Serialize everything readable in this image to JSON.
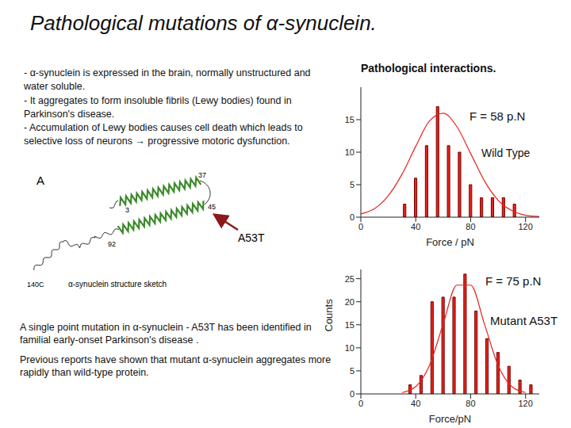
{
  "title": "Pathological mutations of α-synuclein.",
  "bullets": [
    "- α-synuclein is expressed in the brain, normally unstructured and water soluble.",
    "- It aggregates to form insoluble fibrils (Lewy bodies) found in Parkinson's disease.",
    "- Accumulation of Lewy bodies causes cell death which leads to selective loss of neurons → progressive motoric dysfunction."
  ],
  "diagram": {
    "panel": "A",
    "labels": {
      "helix1_start": "3",
      "helix1_end": "37",
      "helix2_start": "45",
      "helix2_end": "92",
      "c_term": "140C"
    },
    "caption": "α-synuclein structure sketch",
    "mutation": "A53T"
  },
  "paragraphs": [
    "A single point mutation in α-synuclein - A53T has been identified in familial early-onset Parkinson's disease .",
    "Previous reports have shown that mutant α-synuclein aggregates more rapidly than wild-type protein."
  ],
  "section_title": "Pathological interactions.",
  "chart_data": [
    {
      "type": "histogram",
      "annotation": "F = 58 p.N",
      "label": "Wild Type",
      "bins": [
        28,
        36,
        44,
        52,
        60,
        68,
        76,
        84,
        92,
        100,
        108,
        116
      ],
      "counts": [
        2,
        6,
        11,
        17,
        11,
        10,
        5,
        3,
        3,
        3,
        2
      ],
      "color": "#e8241c",
      "fit": {
        "x": [
          0,
          10,
          20,
          30,
          40,
          50,
          60,
          70,
          80,
          90,
          100,
          110,
          120,
          130
        ],
        "values": [
          0.5,
          1.3,
          3.3,
          6.6,
          10.9,
          14.8,
          16,
          13.9,
          9.8,
          5.6,
          2.6,
          1,
          0.3,
          0.1
        ],
        "color": "#e8241c"
      },
      "xlabel": "Force / pN",
      "xlim": [
        0,
        130
      ],
      "xticks": [
        0,
        40,
        80,
        120
      ],
      "ylim": [
        0,
        20
      ],
      "yticks": [
        0,
        5,
        10,
        15
      ]
    },
    {
      "type": "histogram",
      "annotation": "F = 75 p.N",
      "label": "Mutant A53T",
      "bins": [
        32,
        40,
        48,
        56,
        64,
        72,
        80,
        88,
        96,
        104,
        112,
        120,
        128
      ],
      "counts": [
        2,
        4,
        20,
        21,
        21,
        26,
        18,
        12,
        9,
        6,
        3,
        2
      ],
      "color": "#e8241c",
      "fit": {
        "x": [
          30,
          40,
          50,
          60,
          70,
          80,
          90,
          100,
          110,
          120
        ],
        "values": [
          0.3,
          1.6,
          6.2,
          15.2,
          23.6,
          23.6,
          15.2,
          6.2,
          1.6,
          0.3
        ],
        "color": "#e8241c"
      },
      "xlabel": "Force/pN",
      "ylabel": "Counts",
      "xlim": [
        0,
        130
      ],
      "xticks": [
        0,
        40,
        80,
        120
      ],
      "ylim": [
        0,
        27
      ],
      "yticks": [
        0,
        5,
        10,
        15,
        20,
        25
      ]
    }
  ]
}
